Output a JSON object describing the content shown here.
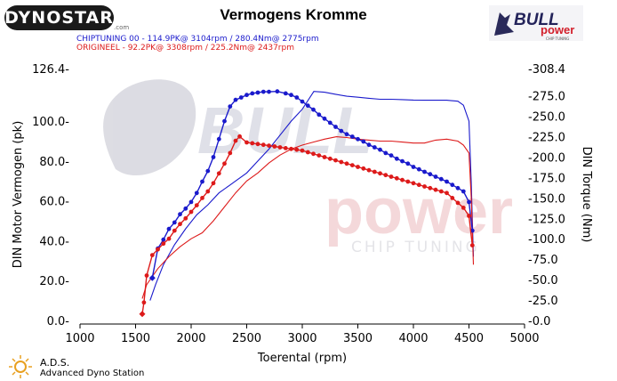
{
  "header": {
    "logo_text": "DYNOSTAR",
    "logo_sub": ".com",
    "title": "Vermogens Kromme",
    "legend_chip": "CHIPTUNING 00   - 114.9PK@ 3104rpm / 280.4Nm@ 2775rpm",
    "legend_orig": "ORIGINEEL  - 92.2PK@ 3308rpm / 225.2Nm@ 2437rpm",
    "chip_color": "#1a1acc",
    "orig_color": "#dd1a1a"
  },
  "brand": {
    "bull_text": "BULL",
    "power_text": "power",
    "chip_tuning_text": "CHIP TUNING",
    "watermark_bull": "BULL",
    "watermark_power": "power",
    "watermark_chip": "CHIP TUNING"
  },
  "footer": {
    "ads_title": "A.D.S.",
    "ads_subtitle": "Advanced Dyno Station"
  },
  "chart_data": {
    "type": "line",
    "title": "Vermogens Kromme",
    "xlabel": "Toerental (rpm)",
    "ylabel_left": "DIN Motor Vermogen (pk)",
    "ylabel_right": "DIN Torque (Nm)",
    "xlim": [
      1000,
      5000
    ],
    "ylim_left": [
      0,
      126.4
    ],
    "ylim_right": [
      0,
      308.4
    ],
    "x_ticks": [
      1000,
      1500,
      2000,
      2500,
      3000,
      3500,
      4000,
      4500,
      5000
    ],
    "y_ticks_left": [
      0.0,
      20.0,
      40.0,
      60.0,
      80.0,
      100.0,
      126.4
    ],
    "y_tick_labels_left": [
      "0.0-",
      "20.0-",
      "40.0-",
      "60.0-",
      "80.0-",
      "100.0-",
      "126.4-"
    ],
    "y_ticks_right": [
      0.0,
      25.0,
      50.0,
      75.0,
      100.0,
      125.0,
      150.0,
      175.0,
      200.0,
      225.0,
      250.0,
      275.0,
      308.4
    ],
    "y_tick_labels_right": [
      "-0.0",
      "-25.0",
      "-50.0",
      "-75.0",
      "-100.0",
      "-125.0",
      "-150.0",
      "-175.0",
      "-200.0",
      "-225.0",
      "-250.0",
      "-275.0",
      "-308.4"
    ],
    "grid": false,
    "series": [
      {
        "name": "CHIPTUNING 00",
        "quantity": "power",
        "axis": "left",
        "color": "#1a1acc",
        "x": [
          1630,
          1680,
          1750,
          1850,
          1950,
          2050,
          2150,
          2250,
          2350,
          2400,
          2500,
          2600,
          2700,
          2800,
          2900,
          3000,
          3104,
          3200,
          3300,
          3400,
          3500,
          3600,
          3700,
          3800,
          3900,
          4000,
          4100,
          4200,
          4300,
          4400,
          4450,
          4500,
          4520,
          4540
        ],
        "y": [
          10,
          18,
          28,
          38,
          46,
          53,
          58,
          64,
          68,
          70,
          74,
          80,
          86,
          93,
          100,
          106,
          114.9,
          114.5,
          113.5,
          112.5,
          112,
          111.5,
          111,
          111,
          110.8,
          110.6,
          110.5,
          110.5,
          110.5,
          110,
          108,
          100,
          70,
          32
        ]
      },
      {
        "name": "ORIGINEEL",
        "quantity": "power",
        "axis": "left",
        "color": "#dd1a1a",
        "x": [
          1560,
          1600,
          1700,
          1800,
          1900,
          2000,
          2100,
          2200,
          2300,
          2400,
          2500,
          2600,
          2700,
          2800,
          2900,
          3000,
          3100,
          3200,
          3308,
          3400,
          3500,
          3600,
          3700,
          3800,
          3900,
          4000,
          4100,
          4200,
          4300,
          4400,
          4450,
          4500,
          4520,
          4540
        ],
        "y": [
          11,
          18,
          26,
          32,
          37,
          41,
          44,
          50,
          57,
          64,
          70,
          74,
          79,
          83,
          86,
          88,
          89.5,
          91,
          92.2,
          91.8,
          91,
          90.5,
          90,
          90,
          89.5,
          89,
          89,
          90.5,
          91,
          90,
          88,
          84,
          62,
          28
        ]
      },
      {
        "name": "CHIPTUNING 00",
        "quantity": "torque",
        "axis": "right",
        "color": "#1a1acc",
        "x": [
          1650,
          1700,
          1750,
          1800,
          1850,
          1900,
          1950,
          2000,
          2050,
          2100,
          2150,
          2200,
          2250,
          2300,
          2350,
          2400,
          2450,
          2500,
          2550,
          2600,
          2650,
          2700,
          2775,
          2850,
          2900,
          2950,
          3000,
          3050,
          3100,
          3150,
          3200,
          3250,
          3300,
          3350,
          3400,
          3450,
          3500,
          3550,
          3600,
          3650,
          3700,
          3750,
          3800,
          3850,
          3900,
          3950,
          4000,
          4050,
          4100,
          4150,
          4200,
          4250,
          4300,
          4350,
          4400,
          4450,
          4500,
          4530
        ],
        "y": [
          52,
          88,
          99,
          112,
          120,
          130,
          137,
          145,
          156,
          170,
          183,
          200,
          222,
          244,
          262,
          270,
          273,
          276,
          278,
          279,
          280,
          280,
          280.4,
          278,
          276,
          273,
          268,
          263,
          258,
          252,
          247,
          242,
          237,
          232,
          228,
          225,
          222,
          219,
          215,
          212,
          209,
          205,
          202,
          198,
          195,
          192,
          188,
          185,
          182,
          179,
          176,
          173,
          170,
          166,
          162,
          158,
          145,
          110
        ]
      },
      {
        "name": "ORIGINEEL",
        "quantity": "torque",
        "axis": "right",
        "color": "#dd1a1a",
        "x": [
          1560,
          1575,
          1600,
          1650,
          1700,
          1750,
          1800,
          1850,
          1900,
          1950,
          2000,
          2050,
          2100,
          2150,
          2200,
          2250,
          2300,
          2350,
          2400,
          2437,
          2500,
          2550,
          2600,
          2650,
          2700,
          2750,
          2800,
          2850,
          2900,
          2950,
          3000,
          3050,
          3100,
          3150,
          3200,
          3250,
          3300,
          3350,
          3400,
          3450,
          3500,
          3550,
          3600,
          3650,
          3700,
          3750,
          3800,
          3850,
          3900,
          3950,
          4000,
          4050,
          4100,
          4150,
          4200,
          4250,
          4300,
          4350,
          4400,
          4450,
          4500,
          4530
        ],
        "y": [
          8,
          22,
          55,
          80,
          87,
          94,
          100,
          110,
          118,
          125,
          133,
          141,
          150,
          158,
          168,
          180,
          192,
          205,
          220,
          225.2,
          218,
          217,
          216,
          215,
          214,
          213,
          212,
          211,
          210,
          209,
          208,
          206,
          204,
          202,
          200,
          198,
          196,
          194,
          192,
          190,
          188,
          186,
          184,
          182,
          180,
          178,
          176,
          174,
          172,
          170,
          168,
          166,
          164,
          162,
          160,
          158,
          156,
          150,
          144,
          138,
          128,
          92
        ]
      }
    ]
  }
}
